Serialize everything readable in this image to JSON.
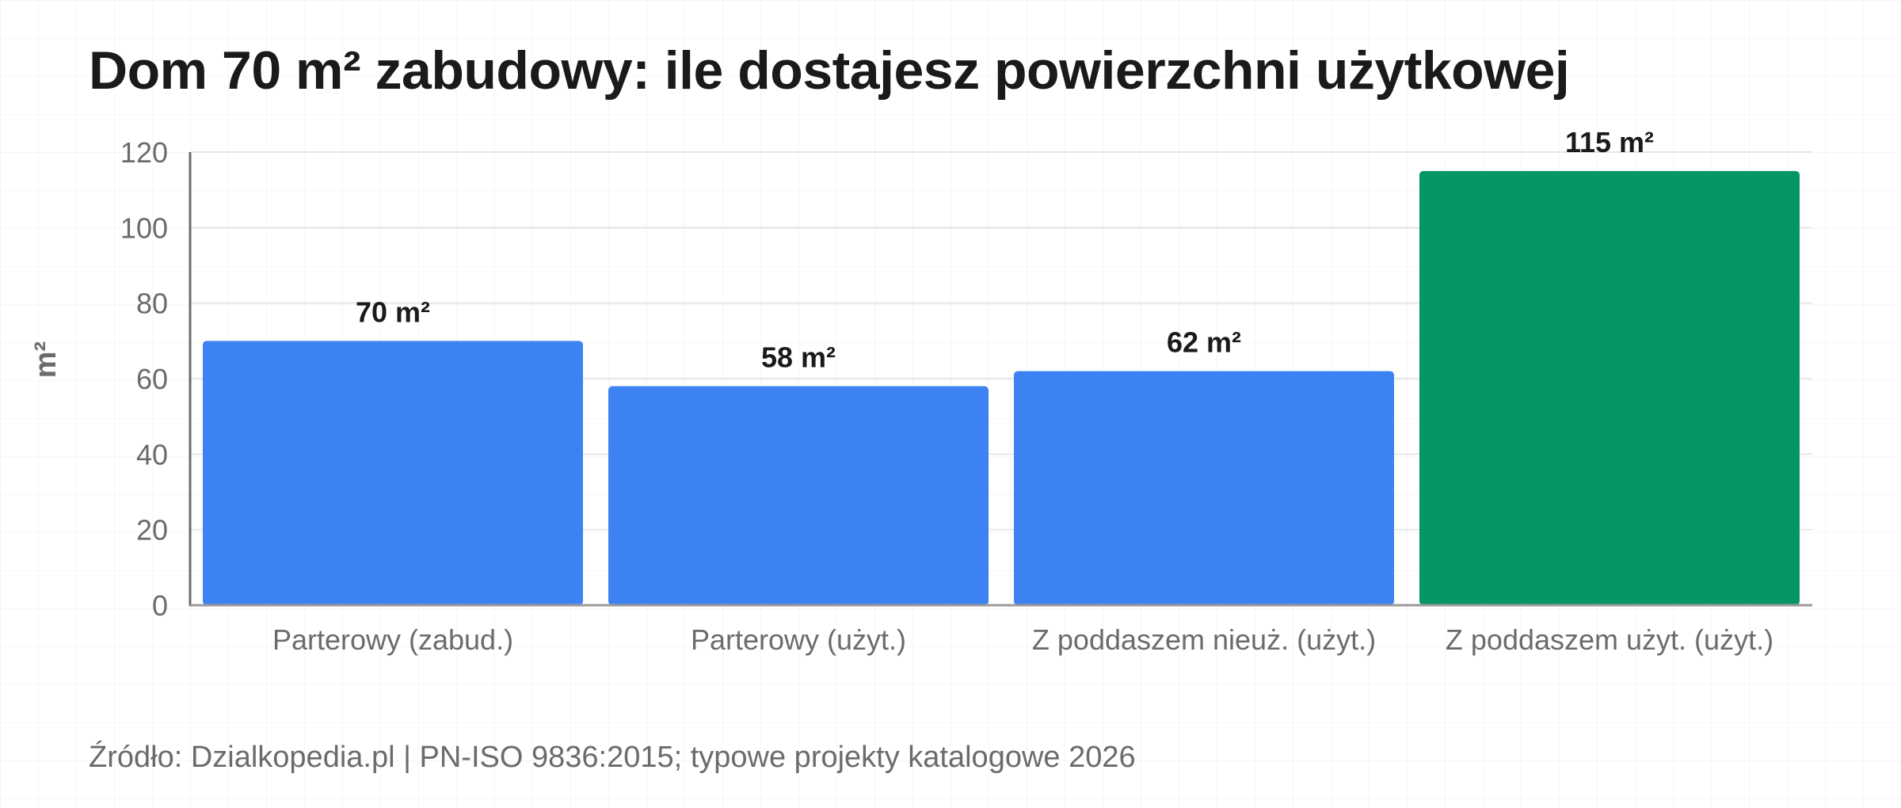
{
  "title": "Dom 70 m² zabudowy: ile dostajesz powierzchni użytkowej",
  "source": "Źródło: Dzialkopedia.pl | PN-ISO 9836:2015; typowe projekty katalogowe 2026",
  "chart_data": {
    "type": "bar",
    "title": "Dom 70 m² zabudowy: ile dostajesz powierzchni użytkowej",
    "xlabel": "",
    "ylabel": "m²",
    "categories": [
      "Parterowy (zabud.)",
      "Parterowy (użyt.)",
      "Z poddaszem nieuż. (użyt.)",
      "Z poddaszem użyt. (użyt.)"
    ],
    "values": [
      70,
      58,
      62,
      115
    ],
    "data_labels": [
      "70 m²",
      "58 m²",
      "62 m²",
      "115 m²"
    ],
    "bar_colors": [
      "#3d82f2",
      "#3d82f2",
      "#3d82f2",
      "#049667"
    ],
    "ylim": [
      0,
      120
    ],
    "yticks": [
      0,
      20,
      40,
      60,
      80,
      100,
      120
    ],
    "grid": true,
    "legend": "none"
  },
  "colors": {
    "text_primary": "#1a1a1a",
    "text_secondary": "#6b6b6b",
    "axis": "#6b6b6b",
    "gridline": "#e6e6e6",
    "bar_blue": "#3d82f2",
    "bar_green": "#049667"
  }
}
